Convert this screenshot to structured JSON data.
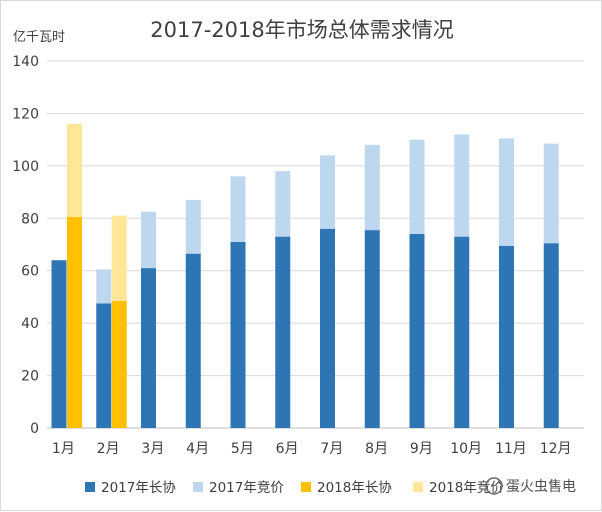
{
  "chart_data": {
    "type": "bar",
    "title": "2017-2018年市场总体需求情况",
    "ylabel": "亿千瓦时",
    "xlabel": "",
    "ylim": [
      0,
      140
    ],
    "yticks": [
      0,
      20,
      40,
      60,
      80,
      100,
      120,
      140
    ],
    "grid": true,
    "legend_position": "bottom",
    "categories": [
      "1月",
      "2月",
      "3月",
      "4月",
      "5月",
      "6月",
      "7月",
      "8月",
      "9月",
      "10月",
      "11月",
      "12月"
    ],
    "series": [
      {
        "name": "2017年长协",
        "color": "#2e75b6",
        "stack": "2017",
        "values": [
          64,
          47.5,
          61,
          66.5,
          71,
          73,
          76,
          75.5,
          74,
          73,
          69.5,
          70.5
        ]
      },
      {
        "name": "2017年竞价",
        "color": "#bdd7ee",
        "stack": "2017",
        "values": [
          0,
          13,
          21.5,
          20.5,
          25,
          25,
          28,
          32.5,
          36,
          39,
          41,
          38
        ]
      },
      {
        "name": "2018年长协",
        "color": "#ffc000",
        "stack": "2018",
        "values": [
          80.5,
          48.5,
          null,
          null,
          null,
          null,
          null,
          null,
          null,
          null,
          null,
          null
        ]
      },
      {
        "name": "2018年竞价",
        "color": "#ffe699",
        "stack": "2018",
        "values": [
          35.5,
          32.5,
          null,
          null,
          null,
          null,
          null,
          null,
          null,
          null,
          null,
          null
        ]
      }
    ]
  },
  "watermark": "蛋火虫售电"
}
